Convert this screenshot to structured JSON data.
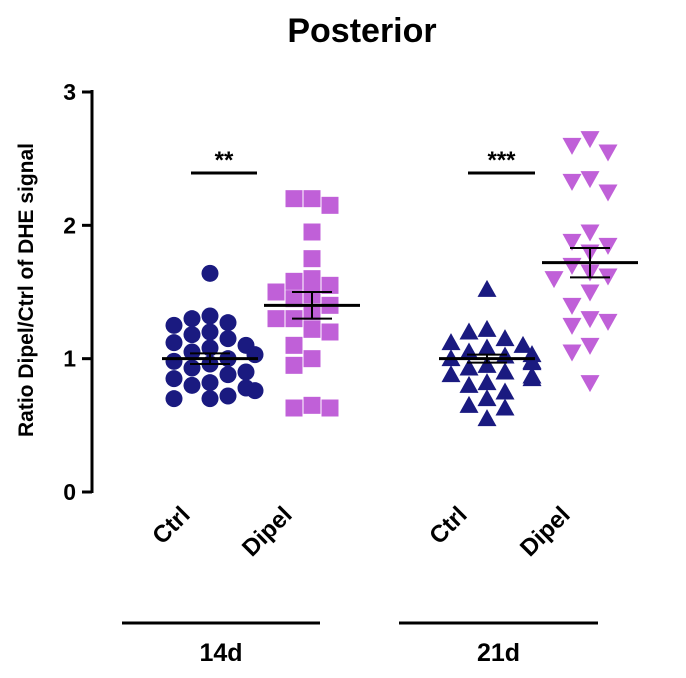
{
  "chart_data": {
    "type": "scatter",
    "title": "Posterior",
    "ylabel": "Ratio Dipel/Ctrl of DHE signal",
    "ylim": [
      0,
      3
    ],
    "yticks": [
      "0",
      "1",
      "2",
      "3"
    ],
    "grid": false,
    "legend": "none",
    "categories": [
      "Ctrl",
      "Dipel",
      "Ctrl",
      "Dipel"
    ],
    "groups": [
      {
        "label": "14d",
        "categories": [
          0,
          1
        ]
      },
      {
        "label": "21d",
        "categories": [
          2,
          3
        ]
      }
    ],
    "series": [
      {
        "category": "Ctrl",
        "group": "14d",
        "marker": "circle",
        "color": "#1a1a80",
        "mean": 1.0,
        "sem": 0.04,
        "values": [
          1.64,
          1.32,
          1.3,
          1.27,
          1.25,
          1.2,
          1.18,
          1.15,
          1.12,
          1.1,
          1.08,
          1.05,
          1.03,
          1.0,
          0.98,
          0.96,
          0.93,
          0.9,
          0.88,
          0.85,
          0.82,
          0.8,
          0.78,
          0.76,
          0.72,
          0.7,
          0.7
        ]
      },
      {
        "category": "Dipel",
        "group": "14d",
        "marker": "square",
        "color": "#c060d8",
        "mean": 1.4,
        "sem": 0.1,
        "values": [
          2.2,
          2.2,
          2.15,
          1.95,
          1.75,
          1.6,
          1.58,
          1.55,
          1.5,
          1.48,
          1.45,
          1.4,
          1.35,
          1.3,
          1.3,
          1.22,
          1.2,
          1.1,
          1.0,
          0.95,
          0.65,
          0.63,
          0.63
        ]
      },
      {
        "category": "Ctrl",
        "group": "21d",
        "marker": "triangle-up",
        "color": "#1a1a80",
        "mean": 1.0,
        "sem": 0.03,
        "values": [
          1.52,
          1.22,
          1.2,
          1.15,
          1.12,
          1.1,
          1.08,
          1.05,
          1.03,
          1.02,
          1.0,
          0.98,
          0.97,
          0.95,
          0.93,
          0.9,
          0.88,
          0.87,
          0.85,
          0.82,
          0.8,
          0.75,
          0.7,
          0.65,
          0.63,
          0.55
        ]
      },
      {
        "category": "Dipel",
        "group": "21d",
        "marker": "triangle-down",
        "color": "#c060d8",
        "mean": 1.72,
        "sem": 0.11,
        "values": [
          2.65,
          2.6,
          2.55,
          2.35,
          2.33,
          2.25,
          1.95,
          1.88,
          1.85,
          1.8,
          1.7,
          1.65,
          1.62,
          1.6,
          1.5,
          1.4,
          1.3,
          1.28,
          1.25,
          1.1,
          1.05,
          0.82
        ]
      }
    ],
    "significance": [
      {
        "label": "**",
        "between": [
          0,
          1
        ]
      },
      {
        "label": "***",
        "between": [
          2,
          3
        ]
      }
    ]
  }
}
